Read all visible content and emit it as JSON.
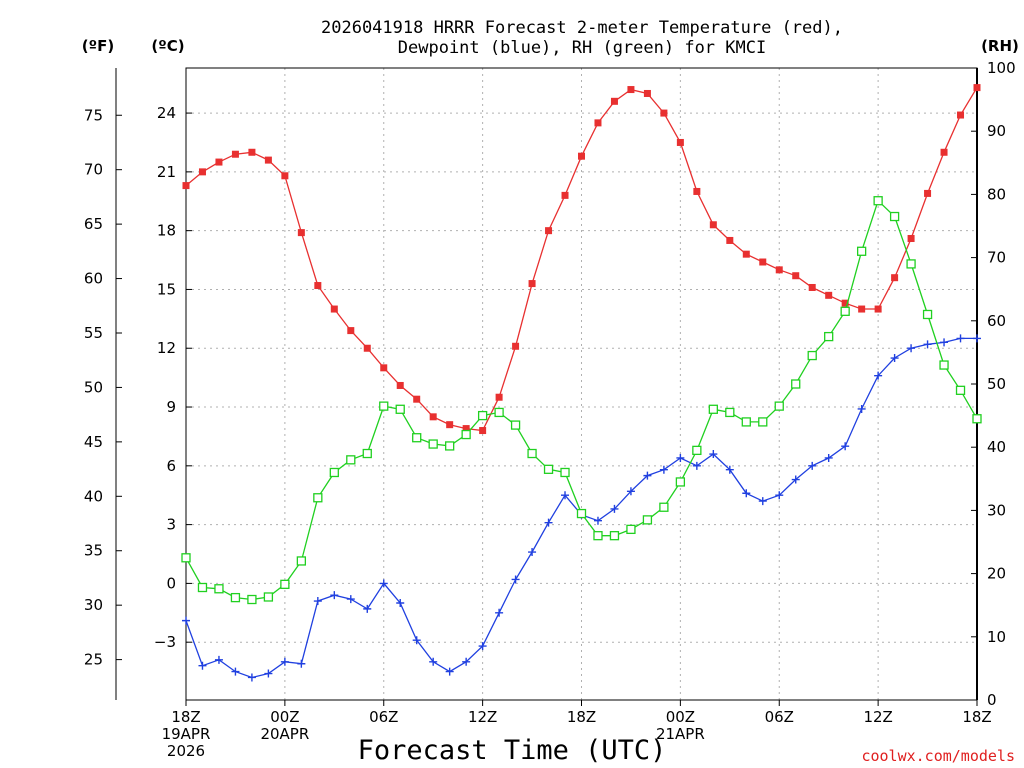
{
  "chart_data": {
    "type": "line",
    "title_lines": [
      "2026041918 HRRR Forecast 2-meter Temperature (red),",
      "Dewpoint (blue), RH (green) for KMCI"
    ],
    "xlabel": "Forecast Time (UTC)",
    "credit": "coolwx.com/models",
    "left_outer_unit": "(ºF)",
    "left_inner_unit": "(ºC)",
    "right_unit": "(RH)",
    "x_range": [
      0,
      48
    ],
    "x_ticks": [
      {
        "x": 0,
        "lines": [
          "18Z",
          "19APR",
          "2026"
        ]
      },
      {
        "x": 6,
        "lines": [
          "00Z",
          "20APR"
        ]
      },
      {
        "x": 12,
        "lines": [
          "06Z"
        ]
      },
      {
        "x": 18,
        "lines": [
          "12Z"
        ]
      },
      {
        "x": 24,
        "lines": [
          "18Z"
        ]
      },
      {
        "x": 30,
        "lines": [
          "00Z",
          "21APR"
        ]
      },
      {
        "x": 36,
        "lines": [
          "06Z"
        ]
      },
      {
        "x": 42,
        "lines": [
          "12Z"
        ]
      },
      {
        "x": 48,
        "lines": [
          "18Z"
        ]
      }
    ],
    "celsius_range": [
      -5.95,
      26.3
    ],
    "celsius_ticks": [
      "-3",
      "0",
      "3",
      "6",
      "9",
      "12",
      "15",
      "18",
      "21",
      "24"
    ],
    "fahrenheit_ticks": [
      "25",
      "30",
      "35",
      "40",
      "45",
      "50",
      "55",
      "60",
      "65",
      "70",
      "75"
    ],
    "rh_range": [
      0,
      100
    ],
    "rh_ticks": [
      "0",
      "10",
      "20",
      "30",
      "40",
      "50",
      "60",
      "70",
      "80",
      "90",
      "100"
    ],
    "series": [
      {
        "name": "Temperature",
        "unit": "°C",
        "color": "#e83030",
        "marker": "filled-square",
        "values": [
          20.3,
          21.0,
          21.5,
          21.9,
          22.0,
          21.6,
          20.8,
          17.9,
          15.2,
          14.0,
          12.9,
          12.0,
          11.0,
          10.1,
          9.4,
          8.5,
          8.1,
          7.9,
          7.8,
          9.5,
          12.1,
          15.3,
          18.0,
          19.8,
          21.8,
          23.5,
          24.6,
          25.2,
          25.0,
          24.0,
          22.5,
          20.0,
          18.3,
          17.5,
          16.8,
          16.4,
          16.0,
          15.7,
          15.1,
          14.7,
          14.3,
          14.0,
          14.0,
          15.6,
          17.6,
          19.9,
          22.0,
          23.9,
          25.3
        ]
      },
      {
        "name": "Dewpoint",
        "unit": "°C",
        "color": "#2040e0",
        "marker": "plus",
        "values": [
          -1.9,
          -4.2,
          -3.9,
          -4.5,
          -4.8,
          -4.6,
          -4.0,
          -4.1,
          -0.9,
          -0.6,
          -0.8,
          -1.3,
          0.0,
          -1.0,
          -2.9,
          -4.0,
          -4.5,
          -4.0,
          -3.2,
          -1.5,
          0.2,
          1.6,
          3.1,
          4.5,
          3.5,
          3.2,
          3.8,
          4.7,
          5.5,
          5.8,
          6.4,
          6.0,
          6.6,
          5.8,
          4.6,
          4.2,
          4.5,
          5.3,
          6.0,
          6.4,
          7.0,
          8.9,
          10.6,
          11.5,
          12.0,
          12.2,
          12.3,
          12.5,
          12.5
        ]
      },
      {
        "name": "RH",
        "unit": "%",
        "color": "#20d020",
        "marker": "open-square",
        "values": [
          22.5,
          17.8,
          17.6,
          16.2,
          15.9,
          16.3,
          18.3,
          22.0,
          32.0,
          36.0,
          38.0,
          39.0,
          46.5,
          46.0,
          41.5,
          40.5,
          40.2,
          42.0,
          45.0,
          45.5,
          43.5,
          39.0,
          36.5,
          36.0,
          29.5,
          26.0,
          26.0,
          27.0,
          28.5,
          30.5,
          34.5,
          39.5,
          46.0,
          45.5,
          44.0,
          44.0,
          46.5,
          50.0,
          54.5,
          57.5,
          61.5,
          71.0,
          79.0,
          76.5,
          69.0,
          61.0,
          53.0,
          49.0,
          44.5
        ]
      }
    ]
  }
}
